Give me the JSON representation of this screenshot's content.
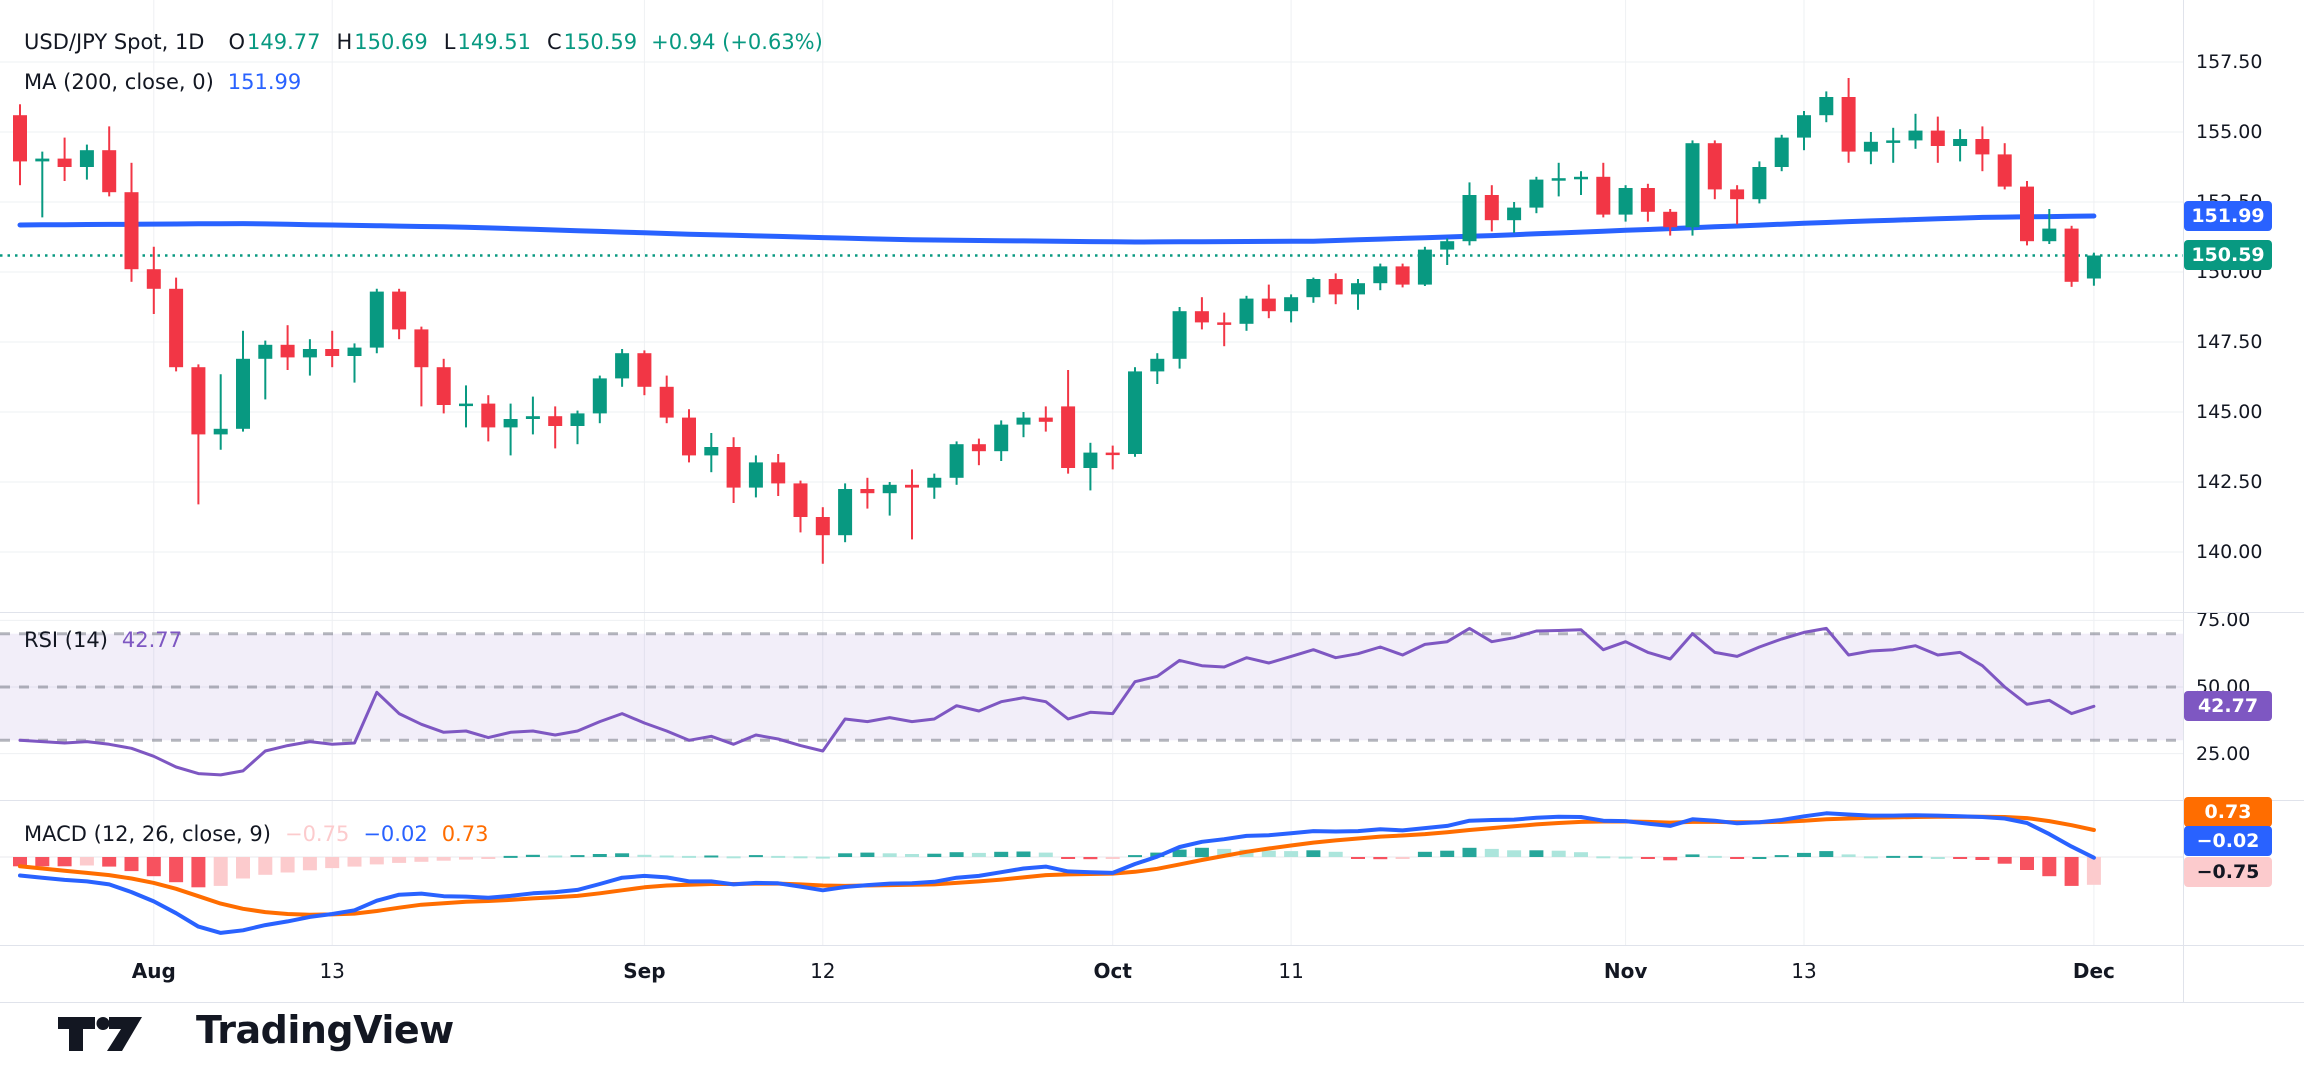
{
  "header": {
    "title": "USD/JPY Spot, 1D",
    "ohlc": [
      {
        "label": "O",
        "value": "149.77"
      },
      {
        "label": "H",
        "value": "150.69"
      },
      {
        "label": "L",
        "value": "149.51"
      },
      {
        "label": "C",
        "value": "150.59"
      }
    ],
    "change": "+0.94 (+0.63%)",
    "ma": {
      "label": "MA (200, close, 0)",
      "value": "151.99"
    }
  },
  "rsi_header": {
    "label": "RSI (14)",
    "value": "42.77"
  },
  "macd_header": {
    "label": "MACD (12, 26, close, 9)",
    "hist": "−0.75",
    "macd": "−0.02",
    "signal": "0.73"
  },
  "footer": {
    "brand": "TradingView"
  },
  "colors": {
    "up": "#089981",
    "down": "#F23645",
    "ma_line": "#2962FF",
    "prev_close_line": "#089981",
    "rsi_line": "#7E57C2",
    "rsi_band": "rgba(126,87,194,0.10)",
    "macd_line": "#2962FF",
    "signal_line": "#FF6D00",
    "hist_pos_strong": "#26A69A",
    "hist_pos_weak": "#ACE5DC",
    "hist_neg_strong": "#F7525F",
    "hist_neg_weak": "#FCCBCD",
    "grid": "#eef0f3",
    "dashed": "rgba(120,123,134,0.55)",
    "text": "#131722"
  },
  "price_axis": {
    "ticks": [
      {
        "text": "157.50",
        "value": 157.5
      },
      {
        "text": "155.00",
        "value": 155.0
      },
      {
        "text": "152.50",
        "value": 152.5
      },
      {
        "text": "150.00",
        "value": 150.0
      },
      {
        "text": "147.50",
        "value": 147.5
      },
      {
        "text": "145.00",
        "value": 145.0
      },
      {
        "text": "142.50",
        "value": 142.5
      },
      {
        "text": "140.00",
        "value": 140.0
      }
    ],
    "badges": [
      {
        "text": "151.99",
        "bg": "#2962FF",
        "fg": "#ffffff",
        "value": 151.99,
        "name": "ma-price-badge"
      },
      {
        "text": "150.59",
        "bg": "#089981",
        "fg": "#ffffff",
        "value": 150.59,
        "name": "last-price-badge"
      }
    ]
  },
  "rsi_axis": {
    "ticks": [
      {
        "text": "75.00",
        "value": 75
      },
      {
        "text": "50.00",
        "value": 50
      },
      {
        "text": "25.00",
        "value": 25
      }
    ],
    "badge": {
      "text": "42.77",
      "bg": "#7E57C2",
      "fg": "#ffffff",
      "value": 42.77
    }
  },
  "macd_axis": {
    "badges": [
      {
        "text": "0.73",
        "bg": "#FF6D00",
        "fg": "#ffffff",
        "y": 812,
        "name": "signal-value-badge"
      },
      {
        "text": "−0.02",
        "bg": "#2962FF",
        "fg": "#ffffff",
        "y": 841,
        "name": "macd-value-badge"
      },
      {
        "text": "−0.75",
        "bg": "#FCCBCD",
        "fg": "#131722",
        "y": 872,
        "name": "hist-value-badge"
      }
    ]
  },
  "time_axis": {
    "labels": [
      {
        "text": "Aug",
        "index": 6,
        "major": true
      },
      {
        "text": "13",
        "index": 14,
        "major": false
      },
      {
        "text": "Sep",
        "index": 28,
        "major": true
      },
      {
        "text": "12",
        "index": 36,
        "major": false
      },
      {
        "text": "Oct",
        "index": 49,
        "major": true
      },
      {
        "text": "11",
        "index": 57,
        "major": false
      },
      {
        "text": "Nov",
        "index": 72,
        "major": true
      },
      {
        "text": "13",
        "index": 80,
        "major": false
      },
      {
        "text": "Dec",
        "index": 93,
        "major": true
      }
    ]
  },
  "chart_data": {
    "type": "candlestick",
    "title": "USD/JPY Spot, 1D",
    "x_range": "late Jul to early Dec, daily bars",
    "price_range": [
      139.58,
      157.5
    ],
    "grid": true,
    "candles_ohlc": [
      [
        155.6,
        155.99,
        153.1,
        153.95
      ],
      [
        153.95,
        154.3,
        151.95,
        154.05
      ],
      [
        154.05,
        154.8,
        153.25,
        153.75
      ],
      [
        153.75,
        154.55,
        153.3,
        154.35
      ],
      [
        154.35,
        155.2,
        152.7,
        152.85
      ],
      [
        152.85,
        153.9,
        149.65,
        150.1
      ],
      [
        150.1,
        150.9,
        148.5,
        149.4
      ],
      [
        149.4,
        149.8,
        146.45,
        146.6
      ],
      [
        146.6,
        146.7,
        141.7,
        144.2
      ],
      [
        144.2,
        146.35,
        143.65,
        144.4
      ],
      [
        144.4,
        147.9,
        144.3,
        146.9
      ],
      [
        146.9,
        147.55,
        145.45,
        147.4
      ],
      [
        147.4,
        148.1,
        146.5,
        146.95
      ],
      [
        146.95,
        147.6,
        146.3,
        147.25
      ],
      [
        147.25,
        147.9,
        146.6,
        147.0
      ],
      [
        147.0,
        147.45,
        146.05,
        147.3
      ],
      [
        147.3,
        149.4,
        147.1,
        149.3
      ],
      [
        149.3,
        149.4,
        147.6,
        147.95
      ],
      [
        147.95,
        148.05,
        145.2,
        146.6
      ],
      [
        146.6,
        146.9,
        144.95,
        145.25
      ],
      [
        145.25,
        145.95,
        144.45,
        145.3
      ],
      [
        145.3,
        145.6,
        143.95,
        144.45
      ],
      [
        144.45,
        145.3,
        143.45,
        144.75
      ],
      [
        144.75,
        145.55,
        144.2,
        144.85
      ],
      [
        144.85,
        145.2,
        143.7,
        144.5
      ],
      [
        144.5,
        145.05,
        143.85,
        144.95
      ],
      [
        144.95,
        146.3,
        144.6,
        146.2
      ],
      [
        146.2,
        147.25,
        145.9,
        147.1
      ],
      [
        147.1,
        147.2,
        145.6,
        145.9
      ],
      [
        145.9,
        146.3,
        144.6,
        144.8
      ],
      [
        144.8,
        145.1,
        143.2,
        143.45
      ],
      [
        143.45,
        144.25,
        142.85,
        143.75
      ],
      [
        143.75,
        144.1,
        141.75,
        142.3
      ],
      [
        142.3,
        143.45,
        141.95,
        143.2
      ],
      [
        143.2,
        143.5,
        142.0,
        142.45
      ],
      [
        142.45,
        142.55,
        140.7,
        141.25
      ],
      [
        141.25,
        141.6,
        139.58,
        140.6
      ],
      [
        140.6,
        142.45,
        140.35,
        142.25
      ],
      [
        142.25,
        142.65,
        141.55,
        142.1
      ],
      [
        142.1,
        142.5,
        141.3,
        142.4
      ],
      [
        142.4,
        142.95,
        140.45,
        142.3
      ],
      [
        142.3,
        142.8,
        141.9,
        142.65
      ],
      [
        142.65,
        143.95,
        142.4,
        143.85
      ],
      [
        143.85,
        144.05,
        143.1,
        143.6
      ],
      [
        143.6,
        144.7,
        143.25,
        144.55
      ],
      [
        144.55,
        145.0,
        144.1,
        144.8
      ],
      [
        144.8,
        145.2,
        144.3,
        144.65
      ],
      [
        145.2,
        146.5,
        142.8,
        143.0
      ],
      [
        143.0,
        143.9,
        142.2,
        143.55
      ],
      [
        143.55,
        143.8,
        142.95,
        143.5
      ],
      [
        143.5,
        146.6,
        143.4,
        146.45
      ],
      [
        146.45,
        147.1,
        146.0,
        146.9
      ],
      [
        146.9,
        148.75,
        146.55,
        148.6
      ],
      [
        148.6,
        149.1,
        147.95,
        148.2
      ],
      [
        148.2,
        148.55,
        147.35,
        148.15
      ],
      [
        148.15,
        149.15,
        147.9,
        149.05
      ],
      [
        149.05,
        149.55,
        148.35,
        148.6
      ],
      [
        148.6,
        149.2,
        148.2,
        149.1
      ],
      [
        149.1,
        149.8,
        148.9,
        149.75
      ],
      [
        149.75,
        149.95,
        148.85,
        149.2
      ],
      [
        149.2,
        149.75,
        148.65,
        149.6
      ],
      [
        149.6,
        150.3,
        149.35,
        150.2
      ],
      [
        150.2,
        150.3,
        149.45,
        149.55
      ],
      [
        149.55,
        150.9,
        149.5,
        150.8
      ],
      [
        150.8,
        151.2,
        150.25,
        151.1
      ],
      [
        151.1,
        153.2,
        150.95,
        152.75
      ],
      [
        152.75,
        153.1,
        151.45,
        151.85
      ],
      [
        151.85,
        152.5,
        151.4,
        152.3
      ],
      [
        152.3,
        153.4,
        152.1,
        153.3
      ],
      [
        153.3,
        153.9,
        152.7,
        153.35
      ],
      [
        153.35,
        153.6,
        152.75,
        153.4
      ],
      [
        153.4,
        153.9,
        151.95,
        152.05
      ],
      [
        152.05,
        153.1,
        151.8,
        153.0
      ],
      [
        153.0,
        153.15,
        151.8,
        152.15
      ],
      [
        152.15,
        152.25,
        151.3,
        151.6
      ],
      [
        151.6,
        154.7,
        151.3,
        154.6
      ],
      [
        154.6,
        154.7,
        152.6,
        152.95
      ],
      [
        152.95,
        153.1,
        151.7,
        152.6
      ],
      [
        152.6,
        153.95,
        152.45,
        153.75
      ],
      [
        153.75,
        154.9,
        153.6,
        154.8
      ],
      [
        154.8,
        155.75,
        154.35,
        155.6
      ],
      [
        155.6,
        156.45,
        155.35,
        156.25
      ],
      [
        156.25,
        156.93,
        153.9,
        154.3
      ],
      [
        154.3,
        155.0,
        153.85,
        154.65
      ],
      [
        154.65,
        155.15,
        153.9,
        154.7
      ],
      [
        154.7,
        155.65,
        154.4,
        155.05
      ],
      [
        155.05,
        155.55,
        153.9,
        154.5
      ],
      [
        154.5,
        155.1,
        153.95,
        154.75
      ],
      [
        154.75,
        155.2,
        153.6,
        154.2
      ],
      [
        154.2,
        154.6,
        152.95,
        153.05
      ],
      [
        153.05,
        153.25,
        150.95,
        151.1
      ],
      [
        151.1,
        152.25,
        151.0,
        151.55
      ],
      [
        151.55,
        151.65,
        149.47,
        149.65
      ],
      [
        149.77,
        150.69,
        149.51,
        150.59
      ]
    ],
    "ma200": {
      "label": "MA (200, close, 0)",
      "value": 151.99,
      "breakpoints": [
        [
          0,
          151.68
        ],
        [
          10,
          151.73
        ],
        [
          20,
          151.6
        ],
        [
          30,
          151.35
        ],
        [
          40,
          151.15
        ],
        [
          50,
          151.07
        ],
        [
          58,
          151.1
        ],
        [
          66,
          151.3
        ],
        [
          74,
          151.55
        ],
        [
          82,
          151.8
        ],
        [
          88,
          151.95
        ],
        [
          93,
          152.0
        ]
      ]
    },
    "prev_close_level": 150.59,
    "rsi": {
      "label": "RSI (14)",
      "last": 42.77,
      "levels": [
        70,
        50,
        30
      ],
      "ylim": [
        13,
        83
      ],
      "values": [
        30,
        29.5,
        29,
        29.5,
        28.5,
        27,
        24,
        20,
        17.5,
        17,
        18.5,
        26,
        28,
        29.5,
        28.5,
        29,
        48,
        40,
        36,
        33,
        33.5,
        31,
        33,
        33.5,
        32,
        33.5,
        37,
        40,
        36.5,
        33.5,
        30,
        31.5,
        28.5,
        32,
        30.5,
        28,
        26,
        38,
        37,
        38.5,
        37,
        38,
        43,
        41,
        44.5,
        46,
        44.5,
        38,
        40.5,
        40,
        52,
        54,
        60,
        58,
        57.5,
        61,
        59,
        61.5,
        64,
        61,
        62.5,
        65,
        62,
        66,
        67,
        72,
        67,
        68.5,
        71,
        71.2,
        71.5,
        64,
        67,
        63,
        60.5,
        70,
        63,
        61.5,
        65,
        68,
        70.5,
        72,
        62,
        63.5,
        64,
        65.5,
        62,
        63,
        58,
        50,
        43.5,
        45,
        40,
        42.77
      ]
    },
    "macd": {
      "label": "MACD (12, 26, close, 9)",
      "last_macd": -0.02,
      "last_signal": 0.73,
      "last_hist": -0.75,
      "macd_line": [
        -0.5,
        -0.56,
        -0.62,
        -0.66,
        -0.74,
        -0.95,
        -1.2,
        -1.52,
        -1.88,
        -2.05,
        -1.98,
        -1.84,
        -1.74,
        -1.62,
        -1.54,
        -1.44,
        -1.18,
        -1.02,
        -0.99,
        -1.06,
        -1.07,
        -1.1,
        -1.05,
        -0.98,
        -0.95,
        -0.89,
        -0.73,
        -0.56,
        -0.51,
        -0.55,
        -0.66,
        -0.66,
        -0.74,
        -0.7,
        -0.71,
        -0.8,
        -0.9,
        -0.81,
        -0.76,
        -0.72,
        -0.71,
        -0.67,
        -0.56,
        -0.51,
        -0.41,
        -0.31,
        -0.26,
        -0.39,
        -0.41,
        -0.43,
        -0.19,
        0.01,
        0.27,
        0.41,
        0.48,
        0.57,
        0.59,
        0.64,
        0.7,
        0.69,
        0.7,
        0.75,
        0.72,
        0.78,
        0.84,
        0.98,
        1.0,
        1.01,
        1.06,
        1.09,
        1.08,
        0.98,
        0.97,
        0.9,
        0.84,
        1.02,
        0.98,
        0.91,
        0.94,
        1.0,
        1.1,
        1.18,
        1.15,
        1.12,
        1.12,
        1.13,
        1.12,
        1.1,
        1.08,
        1.04,
        0.92,
        0.62,
        0.28,
        -0.02
      ],
      "signal_line": [
        -0.25,
        -0.31,
        -0.37,
        -0.43,
        -0.49,
        -0.58,
        -0.7,
        -0.86,
        -1.06,
        -1.26,
        -1.4,
        -1.49,
        -1.54,
        -1.56,
        -1.55,
        -1.53,
        -1.46,
        -1.37,
        -1.29,
        -1.25,
        -1.21,
        -1.19,
        -1.16,
        -1.12,
        -1.09,
        -1.05,
        -0.98,
        -0.9,
        -0.82,
        -0.77,
        -0.75,
        -0.73,
        -0.73,
        -0.72,
        -0.72,
        -0.74,
        -0.77,
        -0.78,
        -0.77,
        -0.76,
        -0.75,
        -0.74,
        -0.7,
        -0.66,
        -0.61,
        -0.55,
        -0.49,
        -0.47,
        -0.46,
        -0.45,
        -0.4,
        -0.32,
        -0.2,
        -0.08,
        0.03,
        0.14,
        0.23,
        0.31,
        0.39,
        0.45,
        0.5,
        0.55,
        0.58,
        0.62,
        0.67,
        0.73,
        0.78,
        0.83,
        0.88,
        0.92,
        0.95,
        0.96,
        0.96,
        0.95,
        0.93,
        0.95,
        0.95,
        0.94,
        0.94,
        0.95,
        0.98,
        1.02,
        1.04,
        1.06,
        1.07,
        1.08,
        1.09,
        1.09,
        1.09,
        1.08,
        1.05,
        0.97,
        0.86,
        0.73
      ],
      "histogram": [
        -0.25,
        -0.25,
        -0.25,
        -0.23,
        -0.26,
        -0.38,
        -0.52,
        -0.68,
        -0.82,
        -0.78,
        -0.58,
        -0.48,
        -0.42,
        -0.36,
        -0.3,
        -0.26,
        -0.2,
        -0.16,
        -0.13,
        -0.1,
        -0.07,
        -0.04,
        0.03,
        0.06,
        0.04,
        0.05,
        0.08,
        0.1,
        0.06,
        0.04,
        0.03,
        0.04,
        0.02,
        0.05,
        0.03,
        0.02,
        0.01,
        0.1,
        0.12,
        0.1,
        0.08,
        0.09,
        0.13,
        0.11,
        0.14,
        0.15,
        0.12,
        -0.05,
        -0.06,
        -0.04,
        0.05,
        0.12,
        0.2,
        0.25,
        0.22,
        0.2,
        0.17,
        0.16,
        0.18,
        0.14,
        -0.04,
        -0.06,
        -0.03,
        0.14,
        0.17,
        0.25,
        0.22,
        0.18,
        0.18,
        0.17,
        0.13,
        0.02,
        0.01,
        -0.05,
        -0.09,
        0.07,
        0.03,
        -0.03,
        0.0,
        0.05,
        0.11,
        0.16,
        0.07,
        0.02,
        0.03,
        0.03,
        0.0,
        -0.03,
        -0.08,
        -0.18,
        -0.35,
        -0.52,
        -0.78,
        -0.75
      ]
    }
  }
}
